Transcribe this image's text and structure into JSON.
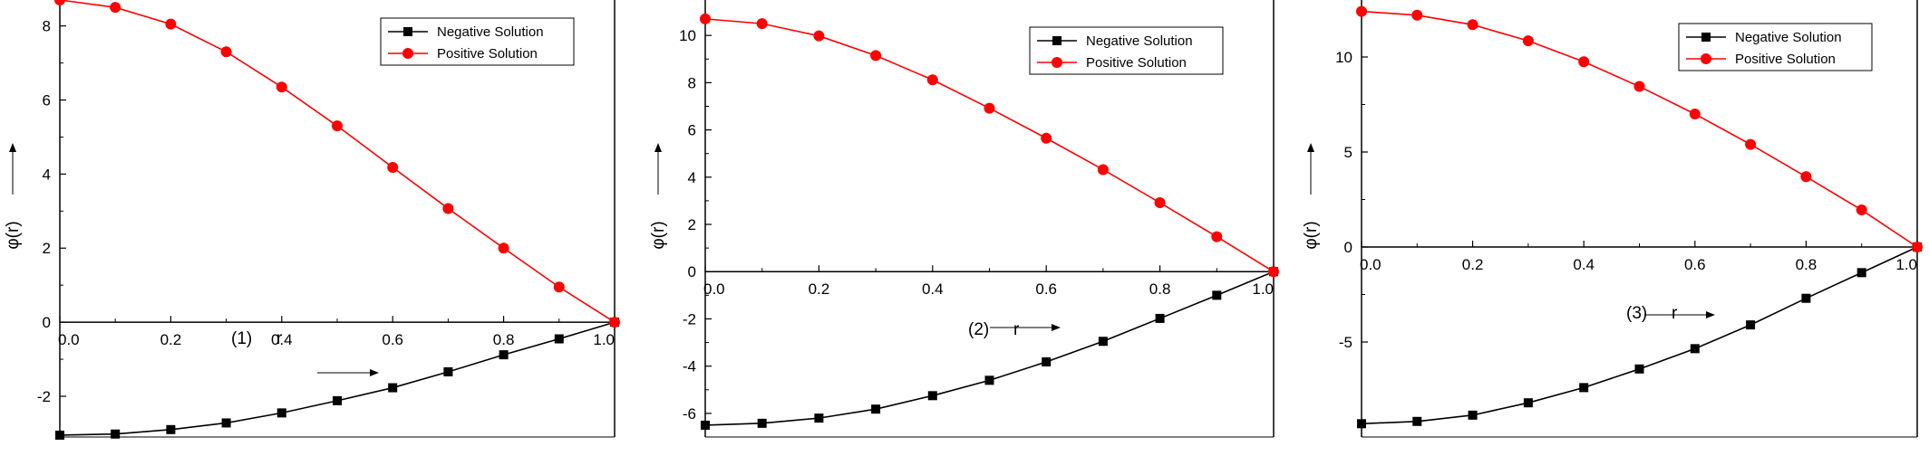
{
  "chart_data": [
    {
      "type": "line",
      "panel_label": "(1)",
      "xlabel": "r",
      "ylabel": "φ(r)",
      "xlim": [
        0,
        1
      ],
      "ylim": [
        -3.1,
        8.7
      ],
      "xticks": [
        0.0,
        0.2,
        0.4,
        0.6,
        0.8,
        1.0
      ],
      "xtick_labels": [
        "0.0",
        "0.2",
        "0.4",
        "0.6",
        "0.8",
        "1.0"
      ],
      "yticks": [
        -2,
        0,
        2,
        4,
        6,
        8
      ],
      "ytick_labels": [
        "-2",
        "0",
        "2",
        "4",
        "6",
        "8"
      ],
      "legend_position": "top-right",
      "x": [
        0.0,
        0.1,
        0.2,
        0.3,
        0.4,
        0.5,
        0.6,
        0.7,
        0.8,
        0.9,
        1.0
      ],
      "series": [
        {
          "name": "Negative Solution",
          "color": "#000000",
          "marker": "square",
          "values": [
            -3.05,
            -3.02,
            -2.9,
            -2.72,
            -2.45,
            -2.12,
            -1.77,
            -1.34,
            -0.88,
            -0.45,
            0.0
          ]
        },
        {
          "name": "Positive Solution",
          "color": "#ff0000",
          "marker": "circle",
          "values": [
            8.7,
            8.5,
            8.05,
            7.3,
            6.35,
            5.3,
            4.18,
            3.07,
            2.0,
            0.95,
            0.0
          ]
        }
      ]
    },
    {
      "type": "line",
      "panel_label": "(2)",
      "xlabel": "r",
      "ylabel": "φ(r)",
      "xlim": [
        0,
        1
      ],
      "ylim": [
        -7,
        11.5
      ],
      "xticks": [
        0.0,
        0.2,
        0.4,
        0.6,
        0.8,
        1.0
      ],
      "xtick_labels": [
        "0.0",
        "0.2",
        "0.4",
        "0.6",
        "0.8",
        "1.0"
      ],
      "yticks": [
        -6,
        -4,
        -2,
        0,
        2,
        4,
        6,
        8,
        10
      ],
      "ytick_labels": [
        "-6",
        "-4",
        "-2",
        "0",
        "2",
        "4",
        "6",
        "8",
        "10"
      ],
      "legend_position": "top-right",
      "x": [
        0.0,
        0.1,
        0.2,
        0.3,
        0.4,
        0.5,
        0.6,
        0.7,
        0.8,
        0.9,
        1.0
      ],
      "series": [
        {
          "name": "Negative Solution",
          "color": "#000000",
          "marker": "square",
          "values": [
            -6.5,
            -6.42,
            -6.2,
            -5.82,
            -5.25,
            -4.6,
            -3.82,
            -2.95,
            -1.98,
            -1.0,
            0.0
          ]
        },
        {
          "name": "Positive Solution",
          "color": "#ff0000",
          "marker": "circle",
          "values": [
            10.7,
            10.5,
            9.98,
            9.15,
            8.12,
            6.92,
            5.65,
            4.32,
            2.92,
            1.48,
            0.0
          ]
        }
      ]
    },
    {
      "type": "line",
      "panel_label": "(3)",
      "xlabel": "r",
      "ylabel": "φ(r)",
      "xlim": [
        0,
        1
      ],
      "ylim": [
        -10,
        13
      ],
      "xticks": [
        0.0,
        0.2,
        0.4,
        0.6,
        0.8,
        1.0
      ],
      "xtick_labels": [
        "0.0",
        "0.2",
        "0.4",
        "0.6",
        "0.8",
        "1.0"
      ],
      "yticks": [
        -5,
        0,
        5,
        10
      ],
      "ytick_labels": [
        "-5",
        "0",
        "5",
        "10"
      ],
      "legend_position": "top-right",
      "x": [
        0.0,
        0.1,
        0.2,
        0.3,
        0.4,
        0.5,
        0.6,
        0.7,
        0.8,
        0.9,
        1.0
      ],
      "series": [
        {
          "name": "Negative Solution",
          "color": "#000000",
          "marker": "square",
          "values": [
            -9.3,
            -9.18,
            -8.85,
            -8.2,
            -7.4,
            -6.42,
            -5.35,
            -4.1,
            -2.7,
            -1.35,
            0.0
          ]
        },
        {
          "name": "Positive Solution",
          "color": "#ff0000",
          "marker": "circle",
          "values": [
            12.4,
            12.2,
            11.7,
            10.85,
            9.75,
            8.45,
            7.0,
            5.4,
            3.7,
            1.95,
            0.0
          ]
        }
      ]
    }
  ]
}
